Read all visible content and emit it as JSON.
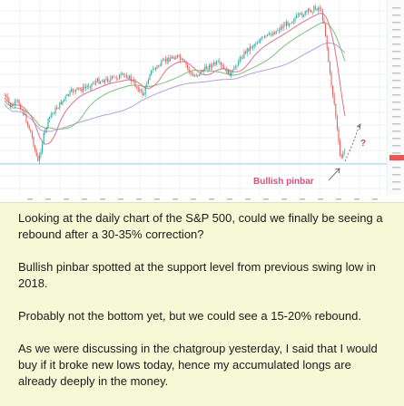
{
  "chart": {
    "annotation_label": "Bullish pinbar",
    "question_mark": "?",
    "colors": {
      "bull": "#26a69a",
      "bear": "#ef5350",
      "ma_red": "#e0718a",
      "ma_green": "#7fbf7f",
      "ma_purple": "#b9a0d6",
      "support": "#9fd3e8",
      "annotation": "#d2527d"
    }
  },
  "message": {
    "paragraphs": [
      "Looking at the daily chart of the S&P 500, could we finally be seeing a rebound after a 30-35% correction?",
      "Bullish pinbar spotted at the support level from previous swing low in 2018.",
      "Probably not the bottom yet, but we could see a 15-20% rebound.",
      "As we were discussing in the chatgroup yesterday, I said that I would buy if it broke new lows today, hence my accumulated longs are already deeply in the money."
    ]
  }
}
